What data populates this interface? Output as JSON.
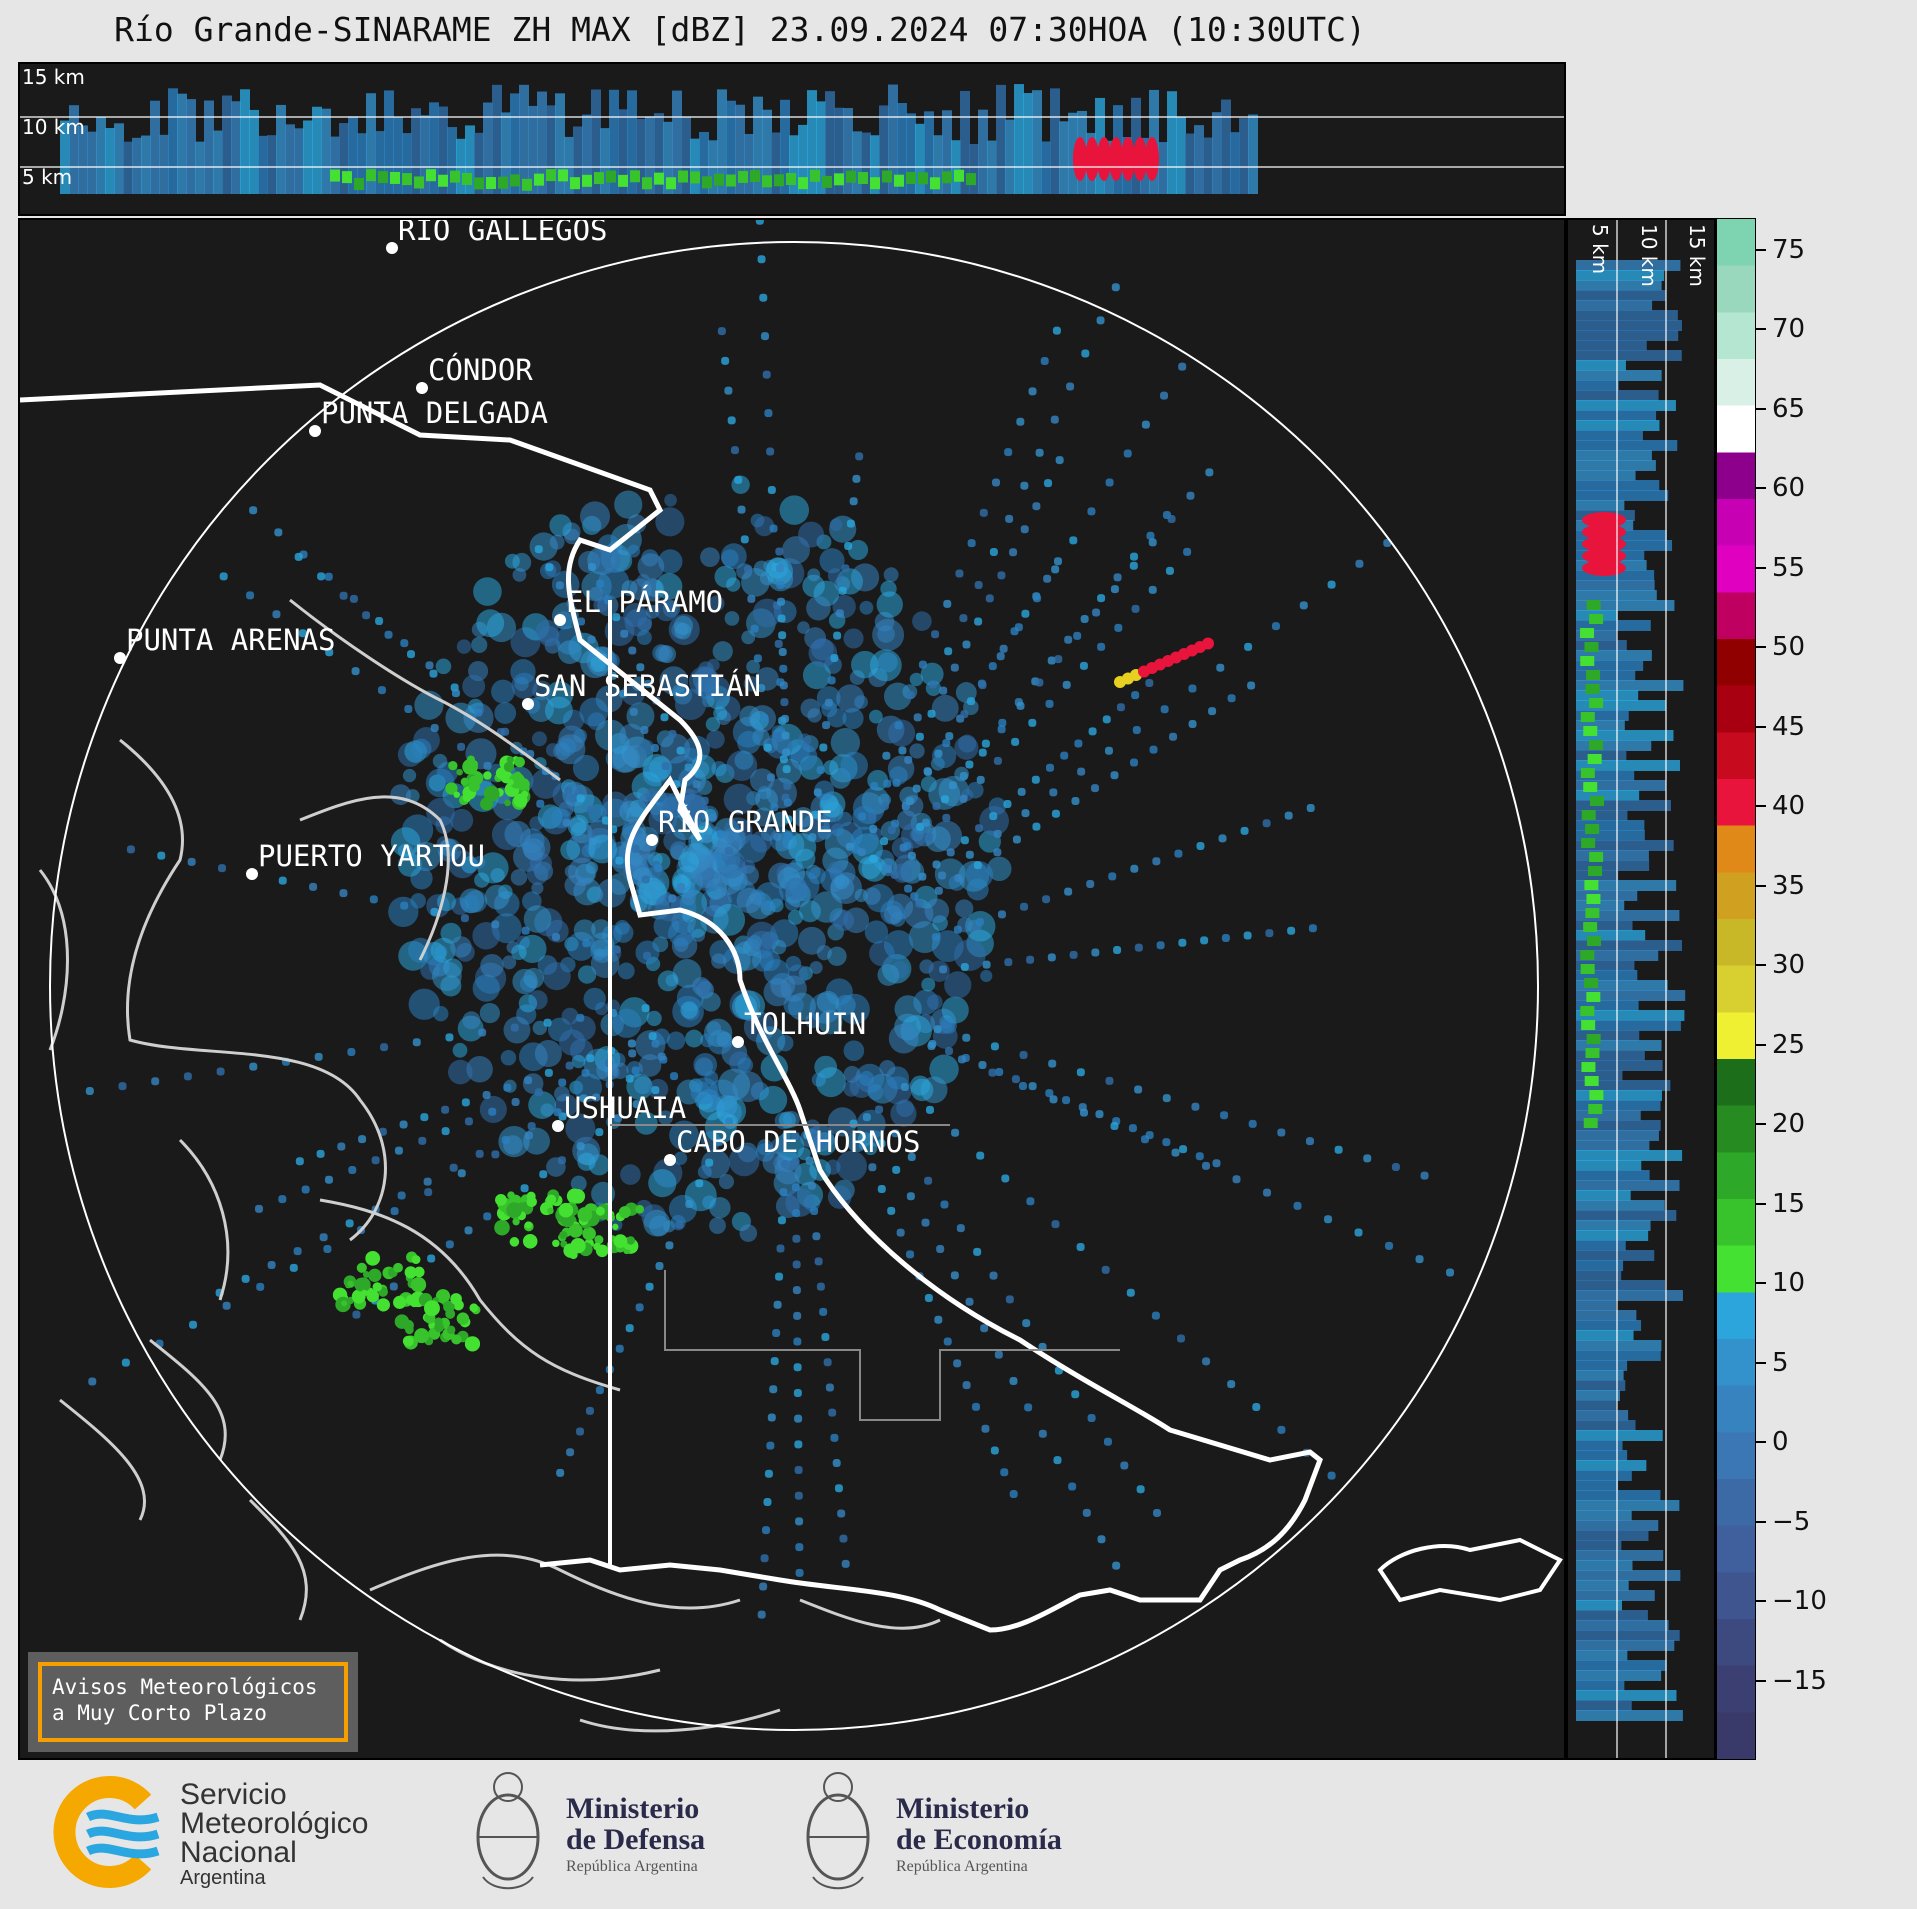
{
  "title": "Río Grande-SINARAME ZH MAX [dBZ] 23.09.2024 07:30HOA (10:30UTC)",
  "top_panel": {
    "altitude_labels": [
      "15 km",
      "10 km",
      "5 km"
    ]
  },
  "side_panel": {
    "altitude_labels": [
      "5 km",
      "10 km",
      "15 km"
    ]
  },
  "cities": [
    {
      "name": "RÍO GALLEGOS"
    },
    {
      "name": "CÓNDOR"
    },
    {
      "name": "PUNTA DELGADA"
    },
    {
      "name": "EL PÁRAMO"
    },
    {
      "name": "PUNTA ARENAS"
    },
    {
      "name": "SAN SEBASTIÁN"
    },
    {
      "name": "RÍO GRANDE"
    },
    {
      "name": "PUERTO YARTOU"
    },
    {
      "name": "TOLHUIN"
    },
    {
      "name": "USHUAIA"
    },
    {
      "name": "CABO DE HORNOS"
    }
  ],
  "colorbar": {
    "unit": "dBZ",
    "ticks": [
      "75",
      "70",
      "65",
      "60",
      "55",
      "50",
      "45",
      "40",
      "35",
      "30",
      "25",
      "20",
      "15",
      "10",
      "5",
      "0",
      "−5",
      "−10",
      "−15"
    ],
    "colors_bottom_to_top": [
      "#3a3a6a",
      "#3b3f72",
      "#3d4a80",
      "#3e5590",
      "#3f609c",
      "#3c6aa6",
      "#3a77b4",
      "#3683c0",
      "#3391cb",
      "#2ba5dc",
      "#44e032",
      "#38c22c",
      "#2ea828",
      "#268c22",
      "#1c6e1a",
      "#f0f032",
      "#d8d030",
      "#c8b828",
      "#d0a020",
      "#e08818",
      "#e8143c",
      "#c80a1e",
      "#a80010",
      "#900000",
      "#c00060",
      "#e000c0",
      "#c800b4",
      "#8c008c",
      "#ffffff",
      "#d8f0e6",
      "#b4e6d2",
      "#9ad8be",
      "#7ed4b0"
    ]
  },
  "notice": {
    "line1": "Avisos Meteorológicos",
    "line2": "a Muy Corto Plazo"
  },
  "logos": {
    "smn": {
      "line1": "Servicio",
      "line2": "Meteorológico",
      "line3": "Nacional",
      "line4": "Argentina"
    },
    "defensa": {
      "line1": "Ministerio",
      "line2": "de Defensa",
      "line3": "República Argentina"
    },
    "economia": {
      "line1": "Ministerio",
      "line2": "de Economía",
      "line3": "República Argentina"
    }
  }
}
